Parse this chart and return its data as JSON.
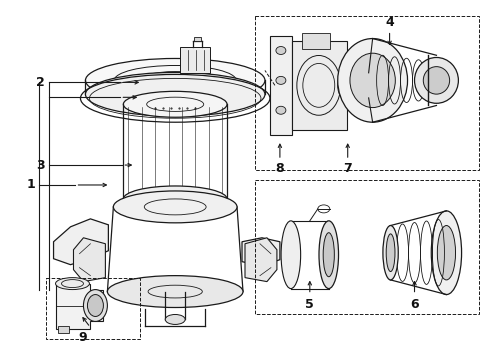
{
  "bg_color": "#ffffff",
  "line_color": "#1a1a1a",
  "label_color": "#111111",
  "fig_w": 4.9,
  "fig_h": 3.6,
  "dpi": 100
}
